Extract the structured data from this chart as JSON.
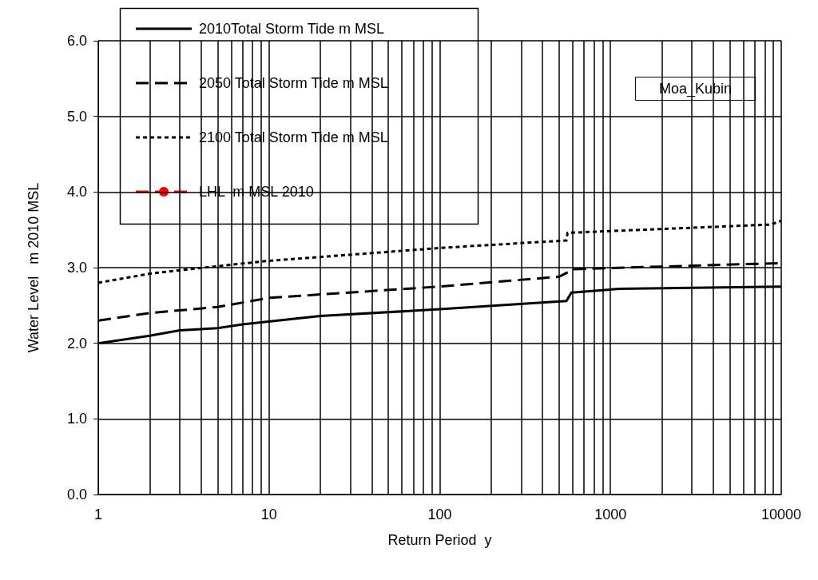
{
  "chart_data": {
    "type": "line",
    "xlabel": "Return Period  y",
    "ylabel": "Water Level   m 2010 MSL",
    "log": "x",
    "xlim": [
      1,
      10000
    ],
    "xticks": [
      1,
      10,
      100,
      1000,
      10000
    ],
    "ylim": [
      0,
      6
    ],
    "yticks": [
      {
        "value": 0,
        "label": "0.0"
      },
      {
        "value": 1,
        "label": "1.0"
      },
      {
        "value": 2,
        "label": "2.0"
      },
      {
        "value": 3,
        "label": "3.0"
      },
      {
        "value": 4,
        "label": "4.0"
      },
      {
        "value": 5,
        "label": "5.0"
      },
      {
        "value": 6,
        "label": "6.0"
      }
    ],
    "grid": true,
    "legend": "top left",
    "marker": "none",
    "annotations": [
      "Moa_Kubin"
    ],
    "series": [
      {
        "name": "2010Total Storm Tide m MSL",
        "color": "#000000",
        "line_style": "solid",
        "x": [
          1,
          2,
          3,
          5,
          7,
          20,
          100,
          552,
          590,
          1130,
          10000
        ],
        "values": [
          2.0,
          2.1,
          2.17,
          2.2,
          2.25,
          2.36,
          2.45,
          2.56,
          2.67,
          2.72,
          2.75
        ]
      },
      {
        "name": "2050 Total Storm Tide m MSL",
        "color": "#000000",
        "line_style": "dashed",
        "x": [
          1,
          2,
          5,
          10,
          100,
          500,
          610,
          10000
        ],
        "values": [
          2.3,
          2.4,
          2.48,
          2.6,
          2.75,
          2.88,
          2.98,
          3.06
        ]
      },
      {
        "name": "2100 Total Storm Tide m MSL",
        "color": "#000000",
        "line_style": "dotted",
        "x": [
          1,
          2,
          5,
          10,
          100,
          552,
          560,
          8700,
          10000
        ],
        "values": [
          2.8,
          2.92,
          3.02,
          3.09,
          3.26,
          3.36,
          3.46,
          3.57,
          3.62
        ]
      },
      {
        "name": "LHL  m MSL 2010",
        "color": "#ff0000",
        "line_style": "dashed",
        "marker": "circle"
      }
    ]
  }
}
